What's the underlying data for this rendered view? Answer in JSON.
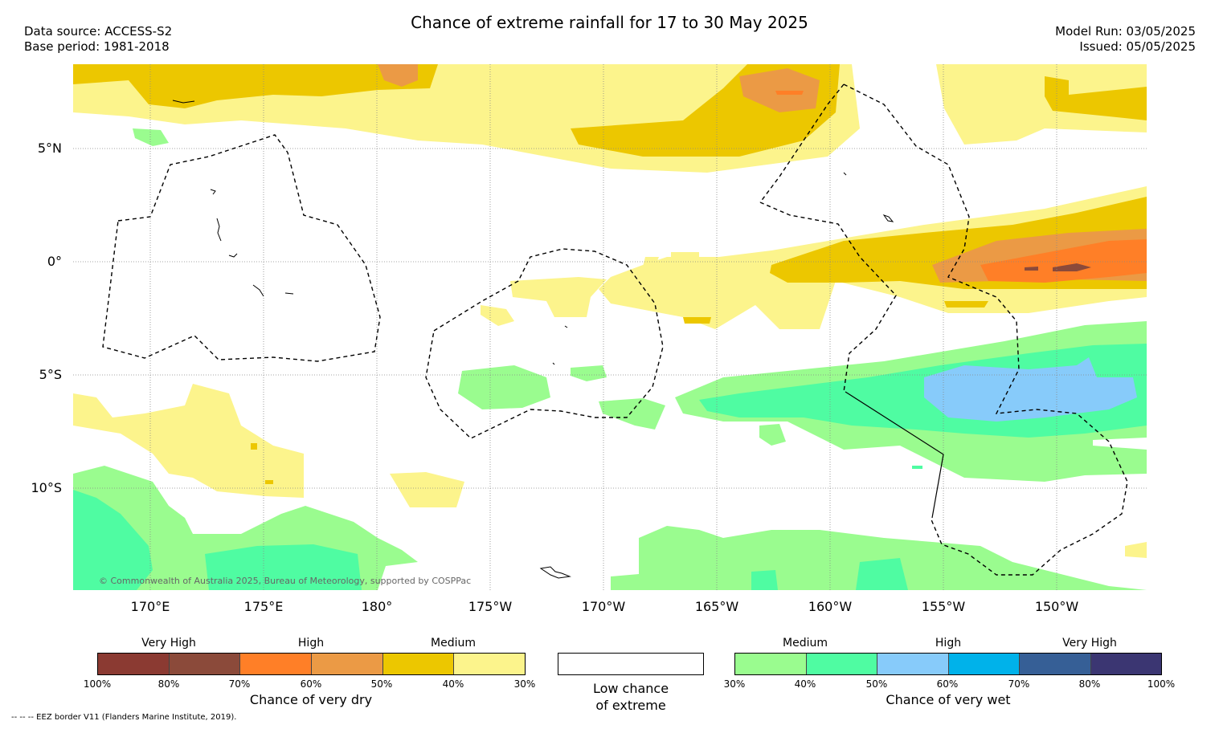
{
  "header": {
    "title": "Chance of extreme rainfall for 17 to 30 May 2025",
    "data_source": "Data source: ACCESS-S2",
    "base_period": "Base period: 1981-2018",
    "model_run": "Model Run: 03/05/2025",
    "issued": "Issued: 05/05/2025"
  },
  "map": {
    "lat_labels": [
      "5°N",
      "0°",
      "5°S",
      "10°S"
    ],
    "lon_labels": [
      "170°E",
      "175°E",
      "180°",
      "175°W",
      "170°W",
      "165°W",
      "160°W",
      "155°W",
      "150°W"
    ],
    "copyright": "© Commonwealth of Australia 2025, Bureau of Meteorology, supported by COSPPac"
  },
  "legend": {
    "dry": {
      "levels": [
        "Very High",
        "High",
        "Medium"
      ],
      "colors": [
        "#8b3a32",
        "#8b4a3a",
        "#ff7f27",
        "#eb9a45",
        "#ecc700",
        "#fcf48c"
      ],
      "ticks": [
        "100%",
        "80%",
        "70%",
        "60%",
        "50%",
        "40%",
        "30%"
      ],
      "title": "Chance of very dry"
    },
    "low": {
      "line1": "Low chance",
      "line2": "of extreme"
    },
    "wet": {
      "levels": [
        "Medium",
        "High",
        "Very High"
      ],
      "colors": [
        "#9afc8f",
        "#4ffca2",
        "#87cbfa",
        "#00b2ea",
        "#365f96",
        "#3b3672"
      ],
      "ticks": [
        "30%",
        "40%",
        "50%",
        "60%",
        "70%",
        "80%",
        "100%"
      ],
      "title": "Chance of very wet"
    }
  },
  "footnote": "--  --  -- EEZ border V11 (Flanders Marine Institute, 2019)."
}
